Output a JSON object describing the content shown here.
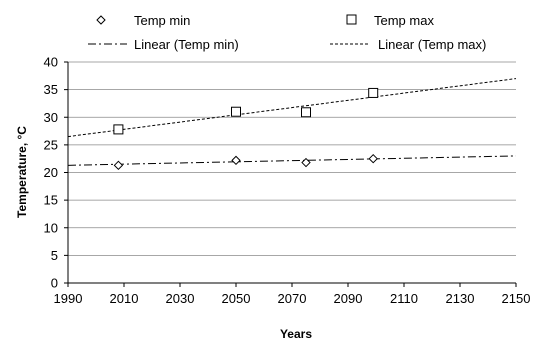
{
  "chart_data": {
    "type": "scatter",
    "xlabel": "Years",
    "ylabel": "Temperature, °C",
    "xlim": [
      1990,
      2150
    ],
    "ylim": [
      0,
      40
    ],
    "xticks": [
      "1990",
      "2010",
      "2030",
      "2050",
      "2070",
      "2090",
      "2110",
      "2130",
      "2150"
    ],
    "yticks": [
      "0",
      "5",
      "10",
      "15",
      "20",
      "25",
      "30",
      "35",
      "40"
    ],
    "grid": "horizontal",
    "legend_position": "top",
    "series": [
      {
        "name": "Temp min",
        "marker": "diamond",
        "x": [
          2008,
          2050,
          2075,
          2099
        ],
        "y": [
          21.3,
          22.2,
          21.8,
          22.5
        ]
      },
      {
        "name": "Temp max",
        "marker": "square",
        "x": [
          2008,
          2050,
          2075,
          2099
        ],
        "y": [
          27.8,
          31.0,
          30.9,
          34.4
        ]
      }
    ],
    "trendlines": [
      {
        "name": "Linear (Temp min)",
        "style": "dash-dot",
        "x": [
          1990,
          2150
        ],
        "y": [
          21.3,
          23.0
        ]
      },
      {
        "name": "Linear (Temp max)",
        "style": "dashed",
        "x": [
          1990,
          2150
        ],
        "y": [
          26.5,
          37.0
        ]
      }
    ]
  }
}
